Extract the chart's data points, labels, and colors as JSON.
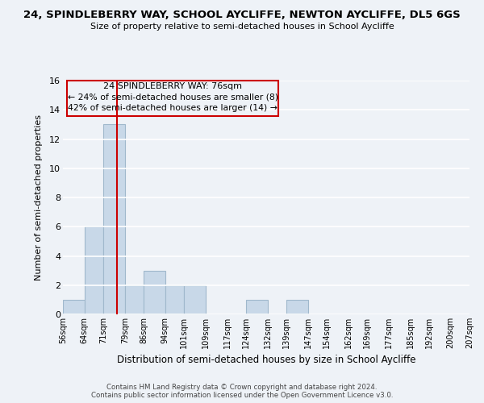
{
  "title": "24, SPINDLEBERRY WAY, SCHOOL AYCLIFFE, NEWTON AYCLIFFE, DL5 6GS",
  "subtitle": "Size of property relative to semi-detached houses in School Aycliffe",
  "xlabel": "Distribution of semi-detached houses by size in School Aycliffe",
  "ylabel": "Number of semi-detached properties",
  "bin_edges": [
    56,
    64,
    71,
    79,
    86,
    94,
    101,
    109,
    117,
    124,
    132,
    139,
    147,
    154,
    162,
    169,
    177,
    185,
    192,
    200,
    207
  ],
  "bin_labels": [
    "56sqm",
    "64sqm",
    "71sqm",
    "79sqm",
    "86sqm",
    "94sqm",
    "101sqm",
    "109sqm",
    "117sqm",
    "124sqm",
    "132sqm",
    "139sqm",
    "147sqm",
    "154sqm",
    "162sqm",
    "169sqm",
    "177sqm",
    "185sqm",
    "192sqm",
    "200sqm",
    "207sqm"
  ],
  "counts": [
    1,
    6,
    13,
    2,
    3,
    2,
    2,
    0,
    0,
    1,
    0,
    1,
    0,
    0,
    0,
    0,
    0,
    0,
    0,
    0
  ],
  "bar_color": "#c8d8e8",
  "bar_edge_color": "#a0b8cc",
  "property_value": 76,
  "property_label": "24 SPINDLEBERRY WAY: 76sqm",
  "pct_smaller": 24,
  "pct_larger": 42,
  "n_smaller": 8,
  "n_larger": 14,
  "vline_color": "#cc0000",
  "annotation_box_color": "#cc0000",
  "ylim": [
    0,
    16
  ],
  "yticks": [
    0,
    2,
    4,
    6,
    8,
    10,
    12,
    14,
    16
  ],
  "background_color": "#eef2f7",
  "grid_color": "#ffffff",
  "footer_line1": "Contains HM Land Registry data © Crown copyright and database right 2024.",
  "footer_line2": "Contains public sector information licensed under the Open Government Licence v3.0."
}
